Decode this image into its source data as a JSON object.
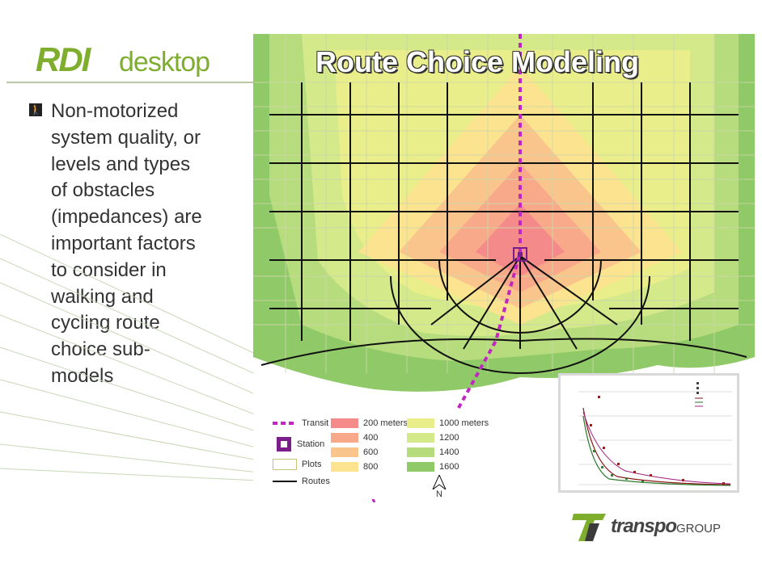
{
  "logo": {
    "mark": "RDI",
    "word": "desktop"
  },
  "slide": {
    "title": "Route Choice Modeling"
  },
  "body": {
    "lines": [
      "Non-motorized",
      "system quality, or",
      "levels and types",
      "of obstacles",
      "(impedances) are",
      "important factors",
      "to consider in",
      "walking and",
      "cycling route",
      "choice sub-",
      "models"
    ]
  },
  "legend": {
    "transit": "Transit",
    "station": "Station",
    "plots": "Plots",
    "routes": "Routes",
    "north": "N",
    "bands": [
      {
        "label": "200 meters",
        "color": "#f48a8a"
      },
      {
        "label": "400",
        "color": "#f7a98a"
      },
      {
        "label": "600",
        "color": "#fac58c"
      },
      {
        "label": "800",
        "color": "#fbe38f"
      },
      {
        "label": "1000 meters",
        "color": "#e9ee8a"
      },
      {
        "label": "1200",
        "color": "#d4e98a"
      },
      {
        "label": "1400",
        "color": "#b6dc7d"
      },
      {
        "label": "1600",
        "color": "#8fc968"
      }
    ]
  },
  "footer": {
    "brand": "transpo",
    "brand_suffix": "GROUP"
  }
}
